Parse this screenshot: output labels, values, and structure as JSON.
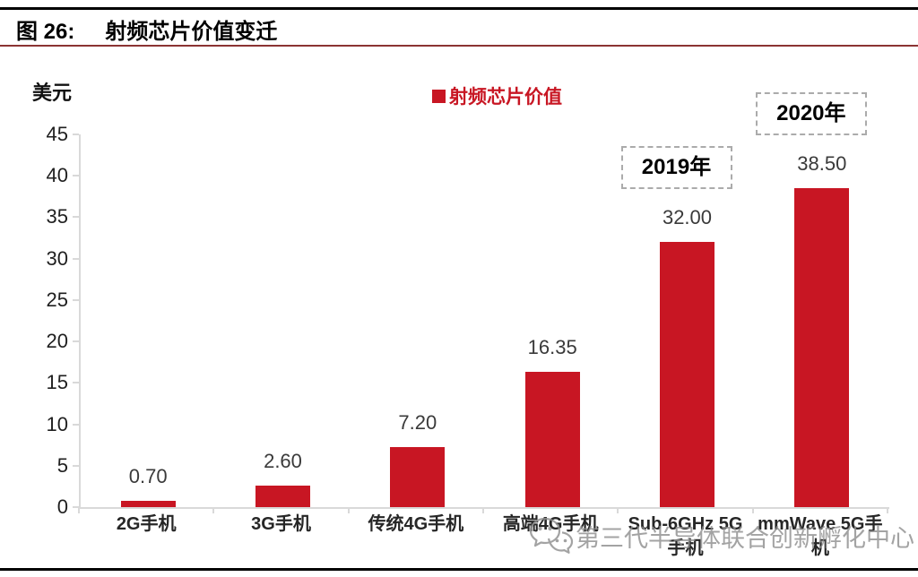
{
  "figure": {
    "label": "图 26:",
    "title": "射频芯片价值变迁"
  },
  "chart_data": {
    "type": "bar",
    "title": "射频芯片价值变迁",
    "ylabel": "美元",
    "xlabel": "",
    "legend": "射频芯片价值",
    "legend_position": "top-center",
    "categories": [
      "2G手机",
      "3G手机",
      "传统4G手机",
      "高端4G手机",
      "Sub-6GHz 5G手机",
      "mmWave 5G手机"
    ],
    "categories_wrapped": [
      [
        "2G手机"
      ],
      [
        "3G手机"
      ],
      [
        "传统4G手机"
      ],
      [
        "高端4G手机"
      ],
      [
        "Sub-6GHz 5G",
        "手机"
      ],
      [
        "mmWave 5G手",
        "机"
      ]
    ],
    "values": [
      0.7,
      2.6,
      7.2,
      16.35,
      32.0,
      38.5
    ],
    "value_labels": [
      "0.70",
      "2.60",
      "7.20",
      "16.35",
      "32.00",
      "38.50"
    ],
    "ylim": [
      0,
      45
    ],
    "yticks": [
      0,
      5,
      10,
      15,
      20,
      25,
      30,
      35,
      40,
      45
    ],
    "grid": false,
    "bar_color": "#c81623",
    "annotations": [
      {
        "text": "2019年",
        "bar_index": 4
      },
      {
        "text": "2020年",
        "bar_index": 5
      }
    ]
  },
  "watermark": {
    "text": "第三代半导体联合创新孵化中心",
    "icon": "wechat-logo"
  },
  "colors": {
    "bar": "#c81623",
    "legend_text": "#c81623",
    "title_rule": "#8b3332",
    "axis": "#d9d9d9",
    "watermark": "#8f8f8f",
    "page_rule": "#000000"
  }
}
